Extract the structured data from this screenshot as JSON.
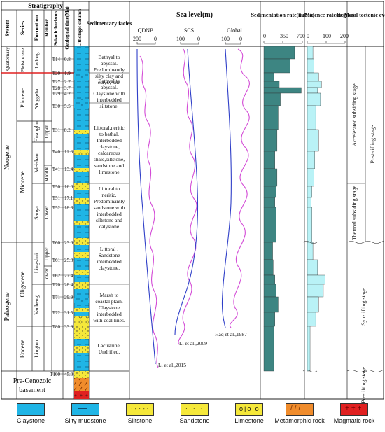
{
  "headers": {
    "stratigraphy": "Stratigraphy",
    "system": "System",
    "series": "Series",
    "formation": "Formation",
    "member": "Member",
    "seismic": "Seismic horizons",
    "geotime": "Geological time(Ma)",
    "lithologic": "Lithologic column",
    "facies": "Sedimentary facies",
    "sealevel": "Sea level(m)",
    "sedrate": "Sedimentation rate(m/Ma)",
    "subrate": "Subsidence rate(m/Ma)",
    "tectonic": "Regional tectonic events"
  },
  "systems": [
    "Quaternary",
    "Neogene",
    "Paleogene",
    "Pre-Cenozoic basement"
  ],
  "series": [
    "Pleistocene",
    "Pliocene",
    "Miocene",
    "Oligocene",
    "Eocene"
  ],
  "formations": [
    "Ledong",
    "Yinggehai",
    "Huangliu",
    "Meishan",
    "Sanya",
    "Lingshui",
    "Yacheng",
    "Lingtou"
  ],
  "members": [
    "Upper",
    "Middle",
    "Lower",
    "Upper",
    "Lower"
  ],
  "horizons": [
    {
      "h": "T14",
      "t": "0.8"
    },
    {
      "h": "T20",
      "t": "1.9"
    },
    {
      "h": "T27",
      "t": "2.7"
    },
    {
      "h": "T28",
      "t": "3.7"
    },
    {
      "h": "T29",
      "t": "4.2"
    },
    {
      "h": "T30",
      "t": "5.5"
    },
    {
      "h": "T31",
      "t": "8.2"
    },
    {
      "h": "T40",
      "t": "11.6"
    },
    {
      "h": "T41",
      "t": "13.4"
    },
    {
      "h": "T50",
      "t": "16.0"
    },
    {
      "h": "T51",
      "t": "17.1"
    },
    {
      "h": "T52",
      "t": "18.3"
    },
    {
      "h": "T60",
      "t": "23.0"
    },
    {
      "h": "T61",
      "t": "25.8"
    },
    {
      "h": "T62",
      "t": "27.4"
    },
    {
      "h": "T70",
      "t": "28.4"
    },
    {
      "h": "T71",
      "t": "29.9"
    },
    {
      "h": "T72",
      "t": "31.5"
    },
    {
      "h": "T80",
      "t": "33.9"
    },
    {
      "h": "T100",
      "t": "45.0"
    }
  ],
  "facies": [
    "Bathyal to abyssal. Predominantly silty clay and clayey silt.",
    "Bathyal to abyssal. Claystone with interbedded siltstone.",
    "Littoral,neritic to bathal. Interbedded claystone, calcareous shale,siltstone, sandstone and limestone",
    "Littoral to neritic. Predominantly sandstone with interbedded siltstone and calystone",
    "Littoral . Sandstone interbedded claystone.",
    "Marsh to coastal plain. Claystone interbedded with coal lines.",
    "Lacustrine. Undrilled."
  ],
  "sealevel_axes": {
    "qdnb": {
      "label": "QDNB",
      "ticks": [
        "200",
        "0"
      ]
    },
    "scs": {
      "label": "SCS",
      "ticks": [
        "100",
        "0"
      ]
    },
    "global": {
      "label": "Global",
      "ticks": [
        "100",
        "0"
      ]
    }
  },
  "curve_labels": [
    "Li et al.,2015",
    "Li et al.,2009",
    "Haq et al.,1987"
  ],
  "sed_ticks": [
    "0",
    "350",
    "700"
  ],
  "sub_ticks": [
    "0",
    "100",
    "200"
  ],
  "tectonic": [
    "Accelerated subsiding stage",
    "Thermal subsiding stage",
    "Post-rifting stage",
    "Syn-rifting stage",
    "Pre-rifting stage"
  ],
  "legend": [
    "Claystone",
    "Silty mudstone",
    "Siltstone",
    "Sandstone",
    "Limestone",
    "Metamorphic rock",
    "Magmatic rock"
  ],
  "colors": {
    "blue": "#1fb5e6",
    "yellow": "#f5e83a",
    "magenta": "#d34ad6",
    "curveblue": "#2f3fc8",
    "teal": "#3d8582",
    "lightcyan": "#b9f2f6",
    "red": "#e02020",
    "orange": "#f08c2c"
  },
  "chart_data": [
    {
      "type": "area",
      "name_hint": "Sedimentation rate(m/Ma)",
      "xlim": [
        0,
        700
      ],
      "x_ticks": [
        0,
        350,
        700
      ],
      "age_Ma": [
        0,
        0.8,
        1.9,
        2.7,
        3.7,
        4.2,
        5.5,
        8.2,
        11.6,
        13.4,
        16.0,
        17.1,
        18.3,
        23.0,
        25.8,
        27.4,
        28.4,
        29.9,
        31.5,
        33.9
      ],
      "values": [
        560,
        480,
        180,
        280,
        680,
        300,
        260,
        240,
        200,
        240,
        220,
        200,
        220,
        160,
        170,
        200,
        220,
        260,
        200,
        180
      ]
    },
    {
      "type": "area",
      "name_hint": "Subsidence rate(m/Ma)",
      "xlim": [
        0,
        200
      ],
      "x_ticks": [
        0,
        100,
        200
      ],
      "age_Ma": [
        0,
        0.8,
        1.9,
        2.7,
        3.7,
        4.2,
        5.5,
        8.2,
        11.6,
        13.4,
        16.0,
        17.1,
        18.3,
        23.0,
        25.8,
        27.4,
        28.4,
        29.9,
        31.5,
        33.9
      ],
      "values": [
        30,
        35,
        60,
        75,
        55,
        70,
        45,
        60,
        40,
        35,
        25,
        20,
        25,
        30,
        55,
        95,
        85,
        60,
        45,
        15
      ]
    }
  ]
}
